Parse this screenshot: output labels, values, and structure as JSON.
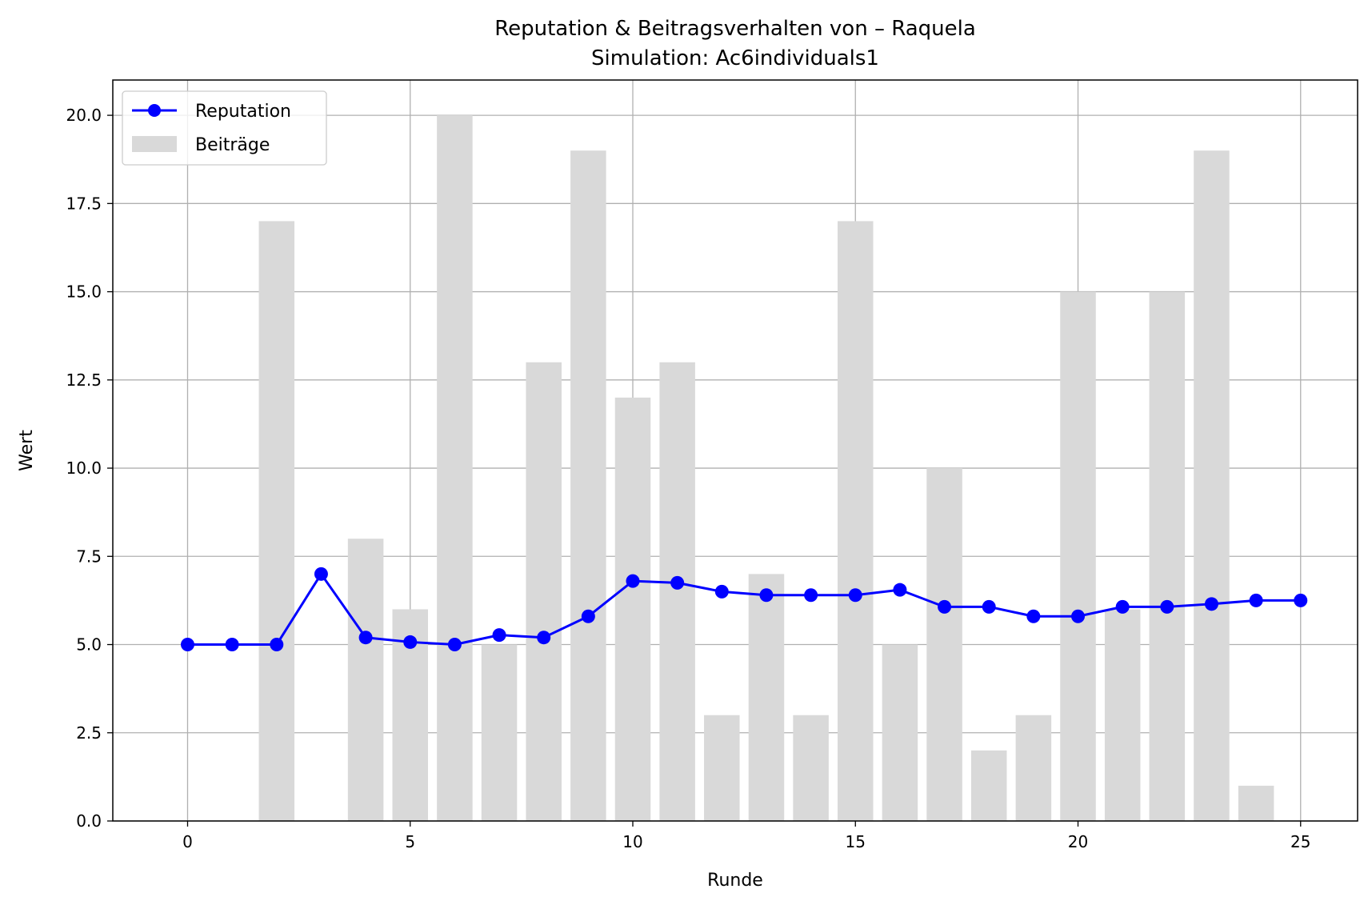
{
  "chart_data": {
    "type": "bar",
    "title": "Reputation & Beitragsverhalten von – Raquela",
    "subtitle": "Simulation: Ac6individuals1",
    "xlabel": "Runde",
    "ylabel": "Wert",
    "xlim": [
      -1.68,
      26.28
    ],
    "ylim": [
      0,
      21
    ],
    "xticks": [
      0,
      5,
      10,
      15,
      20,
      25
    ],
    "xtick_labels": [
      "0",
      "5",
      "10",
      "15",
      "20",
      "25"
    ],
    "yticks": [
      0,
      2.5,
      5,
      7.5,
      10,
      12.5,
      15,
      17.5,
      20
    ],
    "ytick_labels": [
      "0.0",
      "2.5",
      "5.0",
      "7.5",
      "10.0",
      "12.5",
      "15.0",
      "17.5",
      "20.0"
    ],
    "grid": true,
    "legend_position": "top-left",
    "series": [
      {
        "name": "Reputation",
        "type": "line",
        "color": "#0000ff",
        "x": [
          0,
          1,
          2,
          3,
          4,
          5,
          6,
          7,
          8,
          9,
          10,
          11,
          12,
          13,
          14,
          15,
          16,
          17,
          18,
          19,
          20,
          21,
          22,
          23,
          24,
          25
        ],
        "values": [
          5.0,
          5.0,
          5.0,
          7.0,
          5.2,
          5.07,
          5.0,
          5.27,
          5.2,
          5.8,
          6.8,
          6.75,
          6.5,
          6.4,
          6.4,
          6.4,
          6.55,
          6.07,
          6.07,
          5.8,
          5.8,
          6.07,
          6.07,
          6.15,
          6.25,
          6.25
        ]
      },
      {
        "name": "Beiträge",
        "type": "bar",
        "color": "#d9d9d9",
        "x": [
          0,
          1,
          2,
          3,
          4,
          5,
          6,
          7,
          8,
          9,
          10,
          11,
          12,
          13,
          14,
          15,
          16,
          17,
          18,
          19,
          20,
          21,
          22,
          23,
          24,
          25
        ],
        "values": [
          0,
          0,
          17,
          0,
          8,
          6,
          20,
          5,
          13,
          19,
          12,
          13,
          3,
          7,
          3,
          17,
          5,
          10,
          2,
          3,
          15,
          6,
          15,
          19,
          1,
          0
        ]
      }
    ]
  }
}
